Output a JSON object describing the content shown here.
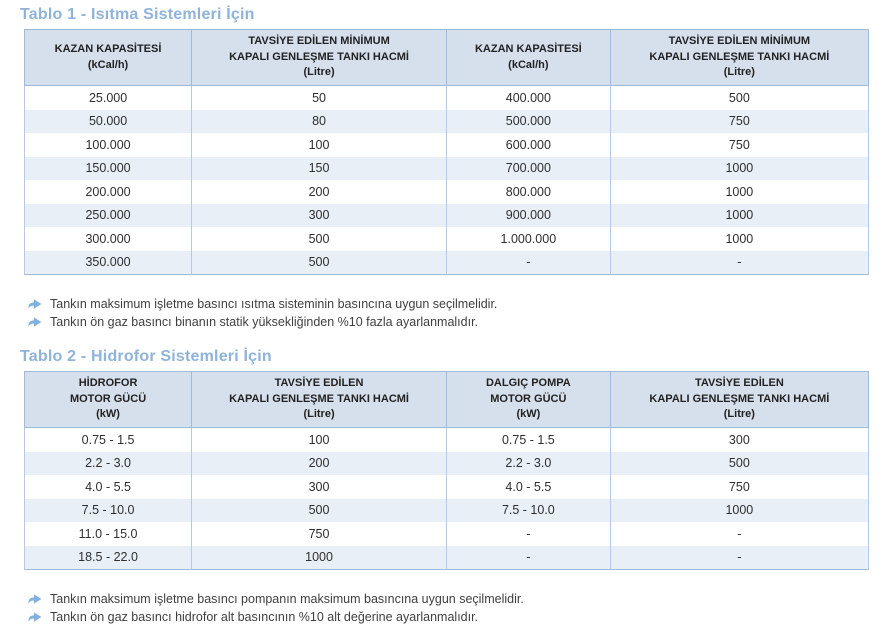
{
  "colors": {
    "title": "#8fb3d9",
    "header_bg": "#d6e0ec",
    "alt_row_bg": "#e8eff7",
    "table_border": "#9fbad9",
    "cell_divider": "#b5cae2",
    "bullet": "#7fb2de",
    "body_text": "#2e2e2e"
  },
  "icons": {
    "note_bullet": "curved-right-arrow-icon"
  },
  "table1": {
    "title": "Tablo 1 - Isıtma Sistemleri İçin",
    "headers": [
      "KAZAN KAPASİTESİ\n(kCal/h)",
      "TAVSİYE EDİLEN MİNİMUM\nKAPALI GENLEŞME TANKI HACMİ\n(Litre)",
      "KAZAN KAPASİTESİ\n(kCal/h)",
      "TAVSİYE EDİLEN MİNİMUM\nKAPALI GENLEŞME TANKI HACMİ\n(Litre)"
    ],
    "rows": [
      [
        "25.000",
        "50",
        "400.000",
        "500"
      ],
      [
        "50.000",
        "80",
        "500.000",
        "750"
      ],
      [
        "100.000",
        "100",
        "600.000",
        "750"
      ],
      [
        "150.000",
        "150",
        "700.000",
        "1000"
      ],
      [
        "200.000",
        "200",
        "800.000",
        "1000"
      ],
      [
        "250.000",
        "300",
        "900.000",
        "1000"
      ],
      [
        "300.000",
        "500",
        "1.000.000",
        "1000"
      ],
      [
        "350.000",
        "500",
        "-",
        "-"
      ]
    ],
    "notes": [
      "Tankın maksimum işletme basıncı ısıtma sisteminin basıncına uygun seçilmelidir.",
      "Tankın ön gaz basıncı binanın statik yüksekliğinden %10 fazla ayarlanmalıdır."
    ]
  },
  "table2": {
    "title": "Tablo 2 - Hidrofor Sistemleri İçin",
    "headers": [
      "HİDROFOR\nMOTOR GÜCÜ\n(kW)",
      "TAVSİYE EDİLEN\nKAPALI GENLEŞME TANKI HACMİ\n(Litre)",
      "DALGIÇ POMPA\nMOTOR GÜCÜ\n(kW)",
      "TAVSİYE EDİLEN\nKAPALI GENLEŞME TANKI HACMİ\n(Litre)"
    ],
    "rows": [
      [
        "0.75 - 1.5",
        "100",
        "0.75 - 1.5",
        "300"
      ],
      [
        "2.2 - 3.0",
        "200",
        "2.2 - 3.0",
        "500"
      ],
      [
        "4.0 - 5.5",
        "300",
        "4.0 - 5.5",
        "750"
      ],
      [
        "7.5 - 10.0",
        "500",
        "7.5 - 10.0",
        "1000"
      ],
      [
        "11.0 - 15.0",
        "750",
        "-",
        "-"
      ],
      [
        "18.5 - 22.0",
        "1000",
        "-",
        "-"
      ]
    ],
    "notes": [
      "Tankın maksimum işletme basıncı pompanın maksimum basıncına uygun seçilmelidir.",
      "Tankın ön gaz basıncı hidrofor alt basıncının %10 alt değerine ayarlanmalıdır."
    ]
  }
}
